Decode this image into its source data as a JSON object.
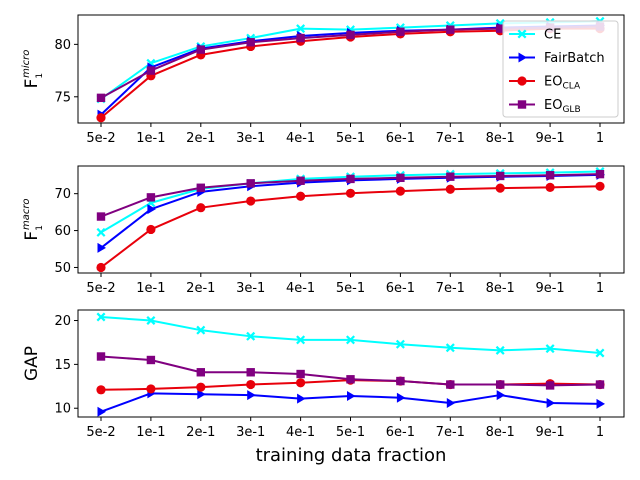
{
  "chart_data": {
    "type": "line",
    "xlabel": "training data fraction",
    "categories": [
      "5e-2",
      "1e-1",
      "2e-1",
      "3e-1",
      "4e-1",
      "5e-1",
      "6e-1",
      "7e-1",
      "8e-1",
      "9e-1",
      "1"
    ],
    "series_styles": [
      {
        "name": "CE",
        "color": "#00ffff",
        "marker": "x"
      },
      {
        "name": "FairBatch",
        "color": "#0000ff",
        "marker": "triangle-right"
      },
      {
        "name": "EO_CLA",
        "color": "#e8000b",
        "marker": "circle"
      },
      {
        "name": "EO_GLB",
        "color": "#800080",
        "marker": "square"
      }
    ],
    "legend": {
      "location": "lower-right of top panel",
      "entries": [
        {
          "base": "CE",
          "sub": ""
        },
        {
          "base": "FairBatch",
          "sub": ""
        },
        {
          "base": "EO",
          "sub": "CLA"
        },
        {
          "base": "EO",
          "sub": "GLB"
        }
      ]
    },
    "panels": [
      {
        "ylabel": {
          "base": "F",
          "sub": "1",
          "sup": "micro"
        },
        "ylim": [
          72.5,
          82.8
        ],
        "yticks": [
          75,
          80
        ],
        "series": [
          {
            "name": "CE",
            "values": [
              74.8,
              78.2,
              79.8,
              80.6,
              81.5,
              81.4,
              81.6,
              81.8,
              82.0,
              82.1,
              82.2
            ]
          },
          {
            "name": "FairBatch",
            "values": [
              73.3,
              77.8,
              79.6,
              80.3,
              80.8,
              81.1,
              81.3,
              81.4,
              81.6,
              81.7,
              81.8
            ]
          },
          {
            "name": "EO_CLA",
            "values": [
              73.0,
              77.0,
              79.0,
              79.8,
              80.3,
              80.7,
              81.0,
              81.2,
              81.3,
              81.5,
              81.5
            ]
          },
          {
            "name": "EO_GLB",
            "values": [
              74.9,
              77.5,
              79.5,
              80.2,
              80.6,
              80.9,
              81.2,
              81.4,
              81.5,
              81.6,
              81.7
            ]
          }
        ]
      },
      {
        "ylabel": {
          "base": "F",
          "sub": "1",
          "sup": "macro"
        },
        "ylim": [
          48.5,
          77.5
        ],
        "yticks": [
          50,
          60,
          70
        ],
        "series": [
          {
            "name": "CE",
            "values": [
              59.5,
              67.5,
              71.3,
              72.8,
              74.0,
              74.6,
              75.0,
              75.3,
              75.5,
              75.7,
              76.0
            ]
          },
          {
            "name": "FairBatch",
            "values": [
              55.3,
              65.8,
              70.5,
              72.0,
              73.0,
              73.6,
              74.0,
              74.3,
              74.6,
              74.8,
              75.1
            ]
          },
          {
            "name": "EO_CLA",
            "values": [
              50.0,
              60.3,
              66.2,
              68.0,
              69.3,
              70.1,
              70.7,
              71.2,
              71.5,
              71.7,
              72.0
            ]
          },
          {
            "name": "EO_GLB",
            "values": [
              63.8,
              69.0,
              71.6,
              72.8,
              73.5,
              74.0,
              74.3,
              74.6,
              74.8,
              75.0,
              75.3
            ]
          }
        ]
      },
      {
        "ylabel": {
          "base": "GAP",
          "sub": "",
          "sup": ""
        },
        "ylim": [
          9.0,
          21.2
        ],
        "yticks": [
          10,
          15,
          20
        ],
        "series": [
          {
            "name": "CE",
            "values": [
              20.4,
              20.0,
              18.9,
              18.2,
              17.8,
              17.8,
              17.3,
              16.9,
              16.6,
              16.8,
              16.3
            ]
          },
          {
            "name": "FairBatch",
            "values": [
              9.6,
              11.7,
              11.6,
              11.5,
              11.1,
              11.4,
              11.2,
              10.6,
              11.5,
              10.6,
              10.5
            ]
          },
          {
            "name": "EO_CLA",
            "values": [
              12.1,
              12.2,
              12.4,
              12.7,
              12.9,
              13.2,
              13.1,
              12.7,
              12.7,
              12.8,
              12.7
            ]
          },
          {
            "name": "EO_GLB",
            "values": [
              15.9,
              15.5,
              14.1,
              14.1,
              13.9,
              13.3,
              13.1,
              12.7,
              12.7,
              12.6,
              12.7
            ]
          }
        ]
      }
    ]
  }
}
